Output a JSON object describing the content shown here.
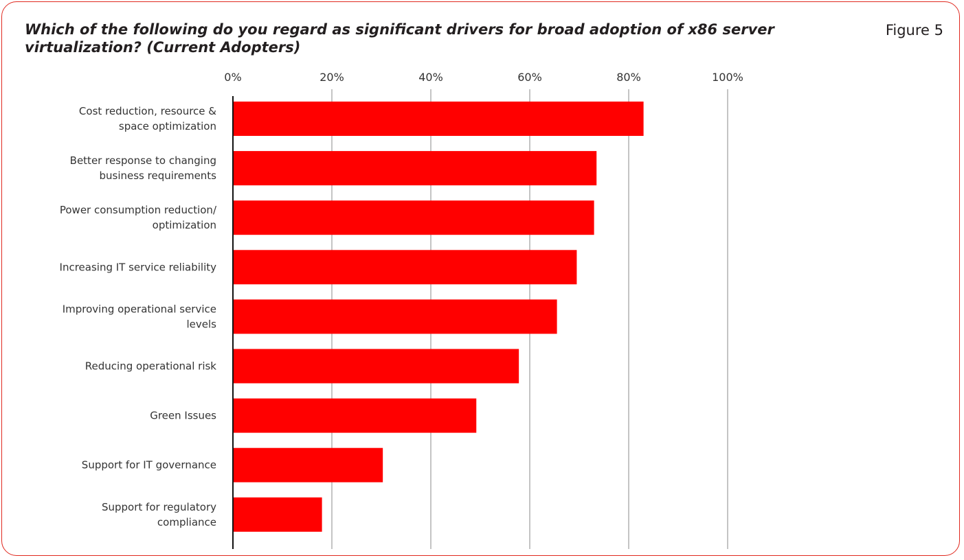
{
  "figure_label": "Figure 5",
  "colors": {
    "bar": "#ff0000",
    "frame": "#e0281e",
    "grid": "#888888",
    "text": "#231f20"
  },
  "chart_data": {
    "type": "bar",
    "orientation": "horizontal",
    "title": "Which of the following do you regard as significant drivers for broad adoption of x86 server virtualization? (Current Adopters)",
    "xlabel": "",
    "ylabel": "",
    "xlim": [
      0,
      100
    ],
    "x_ticks": [
      "0%",
      "20%",
      "40%",
      "60%",
      "80%",
      "100%"
    ],
    "x_tick_values": [
      0,
      20,
      40,
      60,
      80,
      100
    ],
    "grid": true,
    "categories": [
      [
        "Cost reduction, resource &",
        "space optimization"
      ],
      [
        "Better response to changing",
        "business requirements"
      ],
      [
        "Power consumption reduction/",
        "optimization"
      ],
      [
        "Increasing IT service reliability"
      ],
      [
        "Improving operational service",
        "levels"
      ],
      [
        "Reducing operational risk"
      ],
      [
        "Green Issues"
      ],
      [
        "Support for IT governance"
      ],
      [
        "Support for regulatory",
        "compliance"
      ]
    ],
    "values": [
      83,
      73.5,
      73,
      69.5,
      65.5,
      57.8,
      49.2,
      30.3,
      18
    ]
  }
}
